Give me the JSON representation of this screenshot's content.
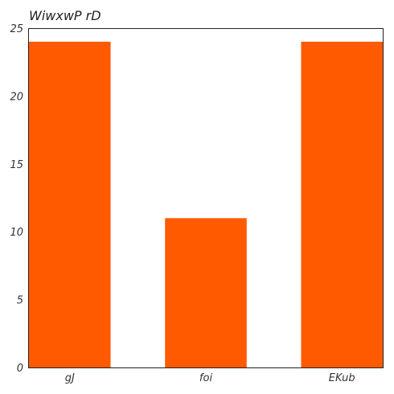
{
  "chart_data": {
    "type": "bar",
    "title": "WiwxwP rD",
    "xlabel": "",
    "ylabel": "",
    "categories": [
      "gJ",
      "foi",
      "EKub"
    ],
    "values": [
      24,
      11,
      24
    ],
    "ylim": [
      0,
      25
    ],
    "yticks": [
      0,
      5,
      10,
      15,
      20,
      25
    ],
    "bar_color": "#ff5a00",
    "grid": false
  }
}
